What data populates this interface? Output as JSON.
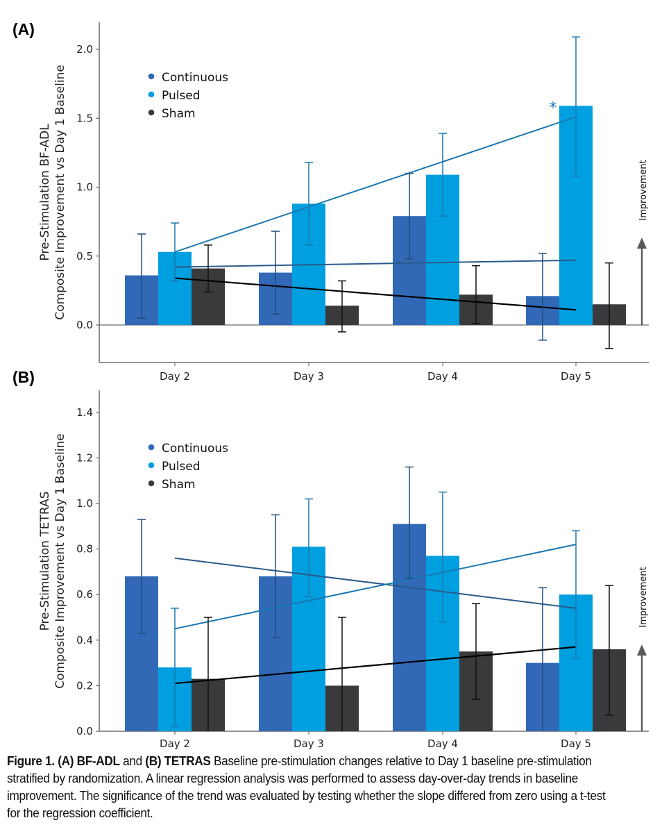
{
  "figure": {
    "colors": {
      "Continuous": "#3169b7",
      "Pulsed": "#009fe0",
      "Sham": "#3a3a3c",
      "Continuous_err": "#1f4e7a",
      "Pulsed_err": "#1a78b0",
      "Sham_err": "#111111",
      "Continuous_trend": "#2a5a8a",
      "Pulsed_trend": "#1a78b0",
      "Sham_trend": "#000000",
      "axis": "#555555",
      "arrow": "#5a5a5a"
    },
    "improvement_label": "Improvement",
    "caption": {
      "lead_bold_1": "Figure 1. (A) BF-ADL",
      "and_text": " and ",
      "lead_bold_2": "(B) TETRAS",
      "body": " Baseline pre-stimulation changes relative to Day 1 baseline pre-stimulation stratified by randomization. A linear regression analysis was performed to assess day-over-day trends in baseline improvement. The significance of the trend was evaluated by testing whether the slope differed from zero using a t-test for the regression coefficient."
    }
  },
  "chart_data": [
    {
      "type": "bar",
      "panel_label": "(A)",
      "title": "",
      "xlabel": "",
      "ylabel": "Pre-Stimulation BF-ADL\nComposite Improvement vs Day 1 Baseline",
      "ylabel_lines": [
        "Pre-Stimulation BF-ADL",
        "Composite Improvement vs Day 1 Baseline"
      ],
      "categories": [
        "Day 2",
        "Day 3",
        "Day 4",
        "Day 5"
      ],
      "ylim": [
        -0.27,
        2.2
      ],
      "yticks": [
        0.0,
        0.5,
        1.0,
        1.5,
        2.0
      ],
      "ytick_labels": [
        "0.0",
        "0.5",
        "1.0",
        "1.5",
        "2.0"
      ],
      "grid": false,
      "legend": {
        "placement": "upper-left",
        "entries": [
          "Continuous",
          "Pulsed",
          "Sham"
        ]
      },
      "series": [
        {
          "name": "Continuous",
          "values": [
            0.36,
            0.38,
            0.79,
            0.21
          ],
          "err_low": [
            0.05,
            0.08,
            0.48,
            -0.11
          ],
          "err_high": [
            0.66,
            0.68,
            1.1,
            0.52
          ]
        },
        {
          "name": "Pulsed",
          "values": [
            0.53,
            0.88,
            1.09,
            1.59
          ],
          "err_low": [
            0.32,
            0.58,
            0.79,
            1.08
          ],
          "err_high": [
            0.74,
            1.18,
            1.39,
            2.09
          ]
        },
        {
          "name": "Sham",
          "values": [
            0.41,
            0.14,
            0.22,
            0.15
          ],
          "err_low": [
            0.24,
            -0.05,
            0.01,
            -0.17
          ],
          "err_high": [
            0.58,
            0.32,
            0.43,
            0.45
          ]
        }
      ],
      "trend_lines": [
        {
          "name": "Continuous",
          "start": 0.42,
          "end": 0.47
        },
        {
          "name": "Pulsed",
          "start": 0.53,
          "end": 1.51
        },
        {
          "name": "Sham",
          "start": 0.34,
          "end": 0.11
        }
      ],
      "annotations": [
        {
          "text": "*",
          "series": "Pulsed",
          "category": "Day 5",
          "meaning": "significant trend"
        },
        {
          "text": "Improvement",
          "type": "upward-arrow"
        }
      ]
    },
    {
      "type": "bar",
      "panel_label": "(B)",
      "title": "",
      "xlabel": "",
      "ylabel": "Pre-Stimulation TETRAS\nComposite Improvement vs Day 1 Baseline",
      "ylabel_lines": [
        "Pre-Stimulation TETRAS",
        "Composite Improvement vs Day 1 Baseline"
      ],
      "categories": [
        "Day 2",
        "Day 3",
        "Day 4",
        "Day 5"
      ],
      "ylim": [
        0.0,
        1.5
      ],
      "yticks": [
        0.0,
        0.2,
        0.4,
        0.6,
        0.8,
        1.0,
        1.2,
        1.4
      ],
      "ytick_labels": [
        "0.0",
        "0.2",
        "0.4",
        "0.6",
        "0.8",
        "1.0",
        "1.2",
        "1.4"
      ],
      "grid": false,
      "legend": {
        "placement": "upper-left",
        "entries": [
          "Continuous",
          "Pulsed",
          "Sham"
        ]
      },
      "series": [
        {
          "name": "Continuous",
          "values": [
            0.68,
            0.68,
            0.91,
            0.3
          ],
          "err_low": [
            0.43,
            0.41,
            0.67,
            -0.03
          ],
          "err_high": [
            0.93,
            0.95,
            1.16,
            0.63
          ]
        },
        {
          "name": "Pulsed",
          "values": [
            0.28,
            0.81,
            0.77,
            0.6
          ],
          "err_low": [
            0.02,
            0.59,
            0.48,
            0.32
          ],
          "err_high": [
            0.54,
            1.02,
            1.05,
            0.88
          ]
        },
        {
          "name": "Sham",
          "values": [
            0.23,
            0.2,
            0.35,
            0.36
          ],
          "err_low": [
            -0.04,
            -0.1,
            0.14,
            0.07
          ],
          "err_high": [
            0.5,
            0.5,
            0.56,
            0.64
          ]
        }
      ],
      "trend_lines": [
        {
          "name": "Continuous",
          "start": 0.76,
          "end": 0.54
        },
        {
          "name": "Pulsed",
          "start": 0.45,
          "end": 0.82
        },
        {
          "name": "Sham",
          "start": 0.21,
          "end": 0.37
        }
      ],
      "annotations": [
        {
          "text": "Improvement",
          "type": "upward-arrow"
        }
      ]
    }
  ]
}
